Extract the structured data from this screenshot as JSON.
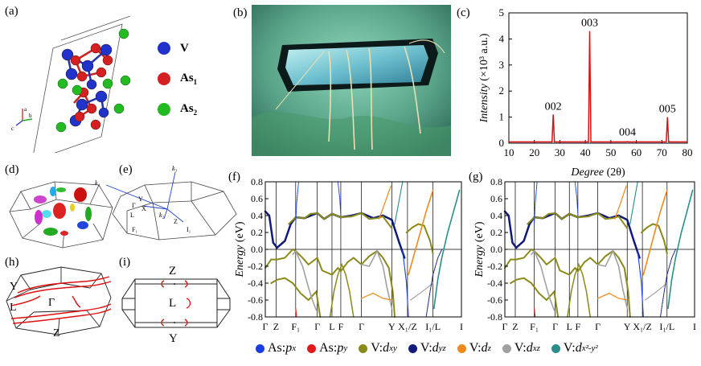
{
  "panel_labels": [
    "(a)",
    "(b)",
    "(c)",
    "(d)",
    "(e)",
    "(f)",
    "(g)",
    "(h)",
    "(i)"
  ],
  "panel_a": {
    "legend": [
      {
        "label": "V",
        "color": "#2233cc"
      },
      {
        "label": "As",
        "sub": "1",
        "color": "#d42020"
      },
      {
        "label": "As",
        "sub": "2",
        "color": "#22bb22"
      }
    ],
    "axes": {
      "a": "a",
      "b": "b",
      "c": "c"
    }
  },
  "panel_c": {
    "chart_data": {
      "type": "line",
      "title": "",
      "xlabel": "Degree (2θ)",
      "ylabel": "Intensity (×10³ a.u.)",
      "xlim": [
        10,
        80
      ],
      "ylim": [
        0,
        5
      ],
      "xticks": [
        10,
        20,
        30,
        40,
        50,
        60,
        70,
        80
      ],
      "yticks": [
        0,
        1,
        2,
        3,
        4,
        5
      ],
      "peaks": [
        {
          "x": 27.4,
          "y": 1.1,
          "label": "002"
        },
        {
          "x": 41.7,
          "y": 4.3,
          "label": "003"
        },
        {
          "x": 56.5,
          "y": 0.06,
          "label": "004"
        },
        {
          "x": 72.2,
          "y": 1.0,
          "label": "005"
        }
      ],
      "color": "#dd1111"
    },
    "xlabel_italic": "Degree",
    "xlabel_rest": "(2θ)",
    "ylabel_italic": "Intensity",
    "ylabel_rest": "(×10³ a.u.)"
  },
  "panel_e": {
    "k1": "k₁",
    "k2": "k₂",
    "k3": "k₃",
    "points": [
      "Γ",
      "Y",
      "X",
      "L",
      "Z",
      "F₁",
      "I₁"
    ]
  },
  "band": {
    "ylabel_italic": "Energy",
    "ylabel_rest": "(eV)",
    "yticks": [
      "0.8",
      "0.6",
      "0.4",
      "0.2",
      "0.0",
      "-0.2",
      "-0.4",
      "-0.6",
      "-0.8"
    ],
    "kpath": [
      "Γ",
      "Z",
      "F₁",
      "Γ",
      "L",
      "F",
      "Γ",
      "Y",
      "X₁/Z",
      "I₁/L",
      "I"
    ]
  },
  "panel_h": {
    "points": [
      "Y",
      "L",
      "Γ",
      "Z"
    ]
  },
  "panel_i": {
    "points": [
      "Z",
      "L",
      "Y"
    ]
  },
  "bottom_legend": [
    {
      "prefix": "As: ",
      "sym": "p",
      "sub": "x",
      "color": "#1a3fe0"
    },
    {
      "prefix": "As: ",
      "sym": "p",
      "sub": "y",
      "color": "#e01a1a"
    },
    {
      "prefix": "V: ",
      "sym": "d",
      "sub": "xy",
      "color": "#8a8a1a"
    },
    {
      "prefix": "V: ",
      "sym": "d",
      "sub": "yz",
      "color": "#101a7a"
    },
    {
      "prefix": "V: ",
      "sym": "d",
      "sub": "z",
      "color": "#ef8a1a"
    },
    {
      "prefix": "V: ",
      "sym": "d",
      "sub": "xz",
      "color": "#a0a0a0"
    },
    {
      "prefix": "V: ",
      "sym": "d",
      "sub": "x²-y²",
      "color": "#2a8f8a"
    }
  ]
}
